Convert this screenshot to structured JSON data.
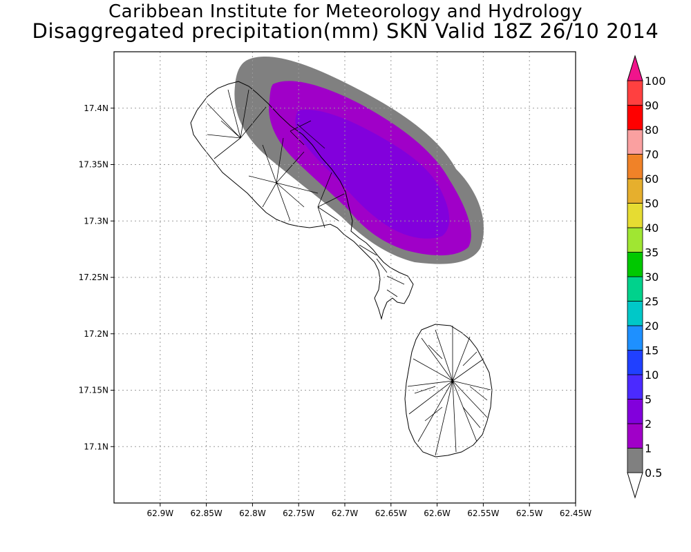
{
  "title": "Caribbean Institute for Meteorology and Hydrology",
  "subtitle": "Disaggregated precipitation(mm) SKN Valid 18Z 26/10 2014",
  "map": {
    "lon_range": [
      -62.95,
      -62.45
    ],
    "lat_range": [
      17.05,
      17.45
    ],
    "lat_ticks": [
      {
        "value": 17.1,
        "label": "17.1N"
      },
      {
        "value": 17.15,
        "label": "17.15N"
      },
      {
        "value": 17.2,
        "label": "17.2N"
      },
      {
        "value": 17.25,
        "label": "17.25N"
      },
      {
        "value": 17.3,
        "label": "17.3N"
      },
      {
        "value": 17.35,
        "label": "17.35N"
      },
      {
        "value": 17.4,
        "label": "17.4N"
      }
    ],
    "lon_ticks": [
      {
        "value": -62.9,
        "label": "62.9W"
      },
      {
        "value": -62.85,
        "label": "62.85W"
      },
      {
        "value": -62.8,
        "label": "62.8W"
      },
      {
        "value": -62.75,
        "label": "62.75W"
      },
      {
        "value": -62.7,
        "label": "62.7W"
      },
      {
        "value": -62.65,
        "label": "62.65W"
      },
      {
        "value": -62.6,
        "label": "62.6W"
      },
      {
        "value": -62.55,
        "label": "62.55W"
      },
      {
        "value": -62.5,
        "label": "62.5W"
      },
      {
        "value": -62.45,
        "label": "62.45W"
      }
    ],
    "grid": true
  },
  "colorbar": {
    "levels": [
      "0.5",
      "1",
      "2",
      "5",
      "10",
      "15",
      "20",
      "25",
      "30",
      "35",
      "40",
      "50",
      "60",
      "70",
      "80",
      "90",
      "100"
    ],
    "colors": [
      "#808080",
      "#a000c8",
      "#8200dc",
      "#4b2aff",
      "#2040ff",
      "#1e90ff",
      "#00c8c8",
      "#00d28c",
      "#00c800",
      "#a0e632",
      "#e6dc32",
      "#e6af2d",
      "#f08228",
      "#faa0a0",
      "#ff0000",
      "#ff4040",
      "#f0148c"
    ],
    "upper_extension_color": "#f0148c",
    "lower_extension_color": "#ffffff"
  },
  "precipitation_bands": [
    {
      "min": 0.5,
      "max": 1,
      "color": "#808080"
    },
    {
      "min": 1,
      "max": 2,
      "color": "#a000c8"
    },
    {
      "min": 2,
      "max": 5,
      "color": "#8200dc"
    }
  ]
}
